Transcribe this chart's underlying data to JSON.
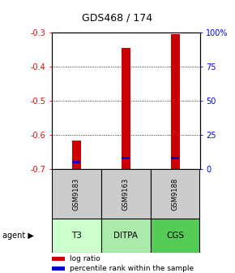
{
  "title": "GDS468 / 174",
  "samples": [
    "GSM9183",
    "GSM9163",
    "GSM9188"
  ],
  "agents": [
    "T3",
    "DITPA",
    "CGS"
  ],
  "log_ratios": [
    -0.615,
    -0.345,
    -0.305
  ],
  "percentile_ranks": [
    5,
    8,
    8
  ],
  "ylim_left": [
    -0.7,
    -0.3
  ],
  "ylim_right": [
    0,
    100
  ],
  "yticks_left": [
    -0.7,
    -0.6,
    -0.5,
    -0.4,
    -0.3
  ],
  "yticks_right": [
    0,
    25,
    50,
    75,
    100
  ],
  "bar_bottom": -0.7,
  "bar_color": "#cc0000",
  "percentile_color": "#0000cc",
  "agent_colors": [
    "#ccffcc",
    "#aaeaaa",
    "#55cc55"
  ],
  "sample_bg": "#cccccc",
  "legend_items": [
    "log ratio",
    "percentile rank within the sample"
  ]
}
